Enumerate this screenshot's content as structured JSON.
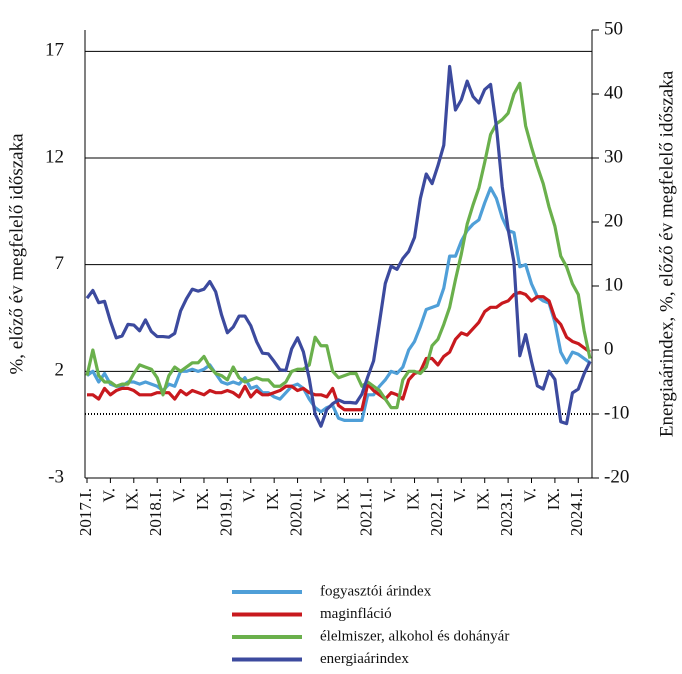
{
  "chart_data": {
    "type": "line",
    "y_label": "%, előző év megfelelő időszaka",
    "y2_label": "Energiaárindex, %, előző év megfelelő időszaka",
    "categories": [
      "2017.I.",
      null,
      null,
      null,
      "V.",
      null,
      null,
      null,
      "IX.",
      null,
      null,
      null,
      "2018.I.",
      null,
      null,
      null,
      "V.",
      null,
      null,
      null,
      "IX.",
      null,
      null,
      null,
      "2019.I.",
      null,
      null,
      null,
      "V.",
      null,
      null,
      null,
      "IX.",
      null,
      null,
      null,
      "2020.I.",
      null,
      null,
      null,
      "V.",
      null,
      null,
      null,
      "IX.",
      null,
      null,
      null,
      "2021.I.",
      null,
      null,
      null,
      "V.",
      null,
      null,
      null,
      "IX.",
      null,
      null,
      null,
      "2022.I.",
      null,
      null,
      null,
      "V.",
      null,
      null,
      null,
      "IX.",
      null,
      null,
      null,
      "2023.I.",
      null,
      null,
      null,
      "V.",
      null,
      null,
      null,
      "IX.",
      null,
      null,
      null,
      "2024.I.",
      null,
      null
    ],
    "ylim": [
      -3,
      18
    ],
    "yticks": [
      -3,
      2,
      7,
      12,
      17
    ],
    "y2lim": [
      -20,
      50
    ],
    "y2ticks": [
      -20,
      -10,
      0,
      10,
      20,
      30,
      40,
      50
    ],
    "grid": true,
    "series": [
      {
        "name": "fogyasztói árindex",
        "color": "#4f9fd8",
        "values": [
          1.8,
          2.0,
          1.5,
          1.9,
          1.4,
          1.3,
          1.3,
          1.5,
          1.5,
          1.4,
          1.5,
          1.4,
          1.3,
          1.1,
          1.4,
          1.3,
          2.0,
          2.0,
          2.1,
          2.0,
          2.1,
          2.3,
          1.9,
          1.5,
          1.4,
          1.5,
          1.4,
          1.7,
          1.2,
          1.3,
          1.0,
          1.0,
          0.8,
          0.7,
          1.0,
          1.3,
          1.4,
          1.2,
          0.7,
          0.3,
          0.1,
          0.3,
          0.4,
          -0.2,
          -0.3,
          -0.3,
          -0.3,
          -0.3,
          0.9,
          0.9,
          1.3,
          1.6,
          2.0,
          1.9,
          2.2,
          3.0,
          3.4,
          4.1,
          4.9,
          5.0,
          5.1,
          5.9,
          7.4,
          7.4,
          8.1,
          8.6,
          8.9,
          9.1,
          9.9,
          10.6,
          10.1,
          9.2,
          8.6,
          8.5,
          6.9,
          7.0,
          6.1,
          5.5,
          5.3,
          5.2,
          4.3,
          2.9,
          2.4,
          2.9,
          2.8,
          2.6,
          2.4
        ]
      },
      {
        "name": "maginfláció",
        "color": "#c8191e",
        "values": [
          0.9,
          0.9,
          0.7,
          1.2,
          0.9,
          1.1,
          1.2,
          1.2,
          1.1,
          0.9,
          0.9,
          0.9,
          1.0,
          1.0,
          1.0,
          0.7,
          1.1,
          0.9,
          1.1,
          1.0,
          0.9,
          1.1,
          1.0,
          1.0,
          1.1,
          1.0,
          0.8,
          1.3,
          0.8,
          1.1,
          0.9,
          0.9,
          1.0,
          1.1,
          1.3,
          1.3,
          1.1,
          1.2,
          1.0,
          0.9,
          0.9,
          0.8,
          1.2,
          0.4,
          0.2,
          0.2,
          0.2,
          0.2,
          1.4,
          1.1,
          0.9,
          0.7,
          1.0,
          0.9,
          0.7,
          1.6,
          1.9,
          2.0,
          2.6,
          2.6,
          2.3,
          2.7,
          2.9,
          3.5,
          3.8,
          3.7,
          4.0,
          4.3,
          4.8,
          5.0,
          5.0,
          5.2,
          5.3,
          5.6,
          5.7,
          5.6,
          5.3,
          5.5,
          5.5,
          5.3,
          4.5,
          4.2,
          3.6,
          3.4,
          3.3,
          3.1,
          2.9
        ]
      },
      {
        "name": "élelmiszer, alkohol és dohányár",
        "color": "#6ab04c",
        "values": [
          1.8,
          3.0,
          1.8,
          1.5,
          1.5,
          1.3,
          1.4,
          1.4,
          1.9,
          2.3,
          2.2,
          2.1,
          1.7,
          0.9,
          1.8,
          2.2,
          2.0,
          2.2,
          2.4,
          2.4,
          2.7,
          2.2,
          1.9,
          1.8,
          1.6,
          2.2,
          1.7,
          1.5,
          1.6,
          1.7,
          1.6,
          1.6,
          1.3,
          1.3,
          1.5,
          2.0,
          2.1,
          2.1,
          2.3,
          3.6,
          3.2,
          3.2,
          2.0,
          1.7,
          1.8,
          1.9,
          1.9,
          1.3,
          1.5,
          1.3,
          1.1,
          0.7,
          0.3,
          0.3,
          1.6,
          2.0,
          2.0,
          1.9,
          2.2,
          3.2,
          3.5,
          4.2,
          5.0,
          6.3,
          7.5,
          8.9,
          9.8,
          10.6,
          11.8,
          13.1,
          13.6,
          13.8,
          14.1,
          15.0,
          15.5,
          13.5,
          12.5,
          11.6,
          10.8,
          9.7,
          8.8,
          7.4,
          6.9,
          6.1,
          5.6,
          3.9,
          2.6
        ]
      },
      {
        "name": "energiaárindex",
        "color": "#3c4a9e",
        "axis": "y2",
        "values": [
          8.1,
          9.3,
          7.4,
          7.6,
          4.5,
          1.9,
          2.2,
          4.0,
          3.9,
          3.0,
          4.7,
          2.9,
          2.1,
          2.1,
          2.0,
          2.6,
          6.1,
          8.0,
          9.5,
          9.2,
          9.5,
          10.7,
          9.1,
          5.5,
          2.7,
          3.6,
          5.3,
          5.3,
          3.8,
          1.3,
          -0.5,
          -0.6,
          -1.8,
          -3.1,
          -3.2,
          0.2,
          1.9,
          -0.3,
          -4.5,
          -10.0,
          -11.9,
          -9.3,
          -8.4,
          -7.8,
          -8.2,
          -8.2,
          -8.3,
          -6.9,
          -4.2,
          -1.7,
          4.3,
          10.4,
          13.1,
          12.6,
          14.3,
          15.4,
          17.6,
          23.7,
          27.5,
          26.0,
          28.8,
          32.0,
          44.3,
          37.5,
          39.1,
          42.0,
          39.6,
          38.6,
          40.7,
          41.5,
          34.9,
          25.5,
          18.9,
          13.7,
          -0.9,
          2.4,
          -1.8,
          -5.6,
          -6.1,
          -3.3,
          -4.6,
          -11.2,
          -11.5,
          -6.7,
          -6.1,
          -3.7,
          -1.8
        ]
      }
    ]
  }
}
